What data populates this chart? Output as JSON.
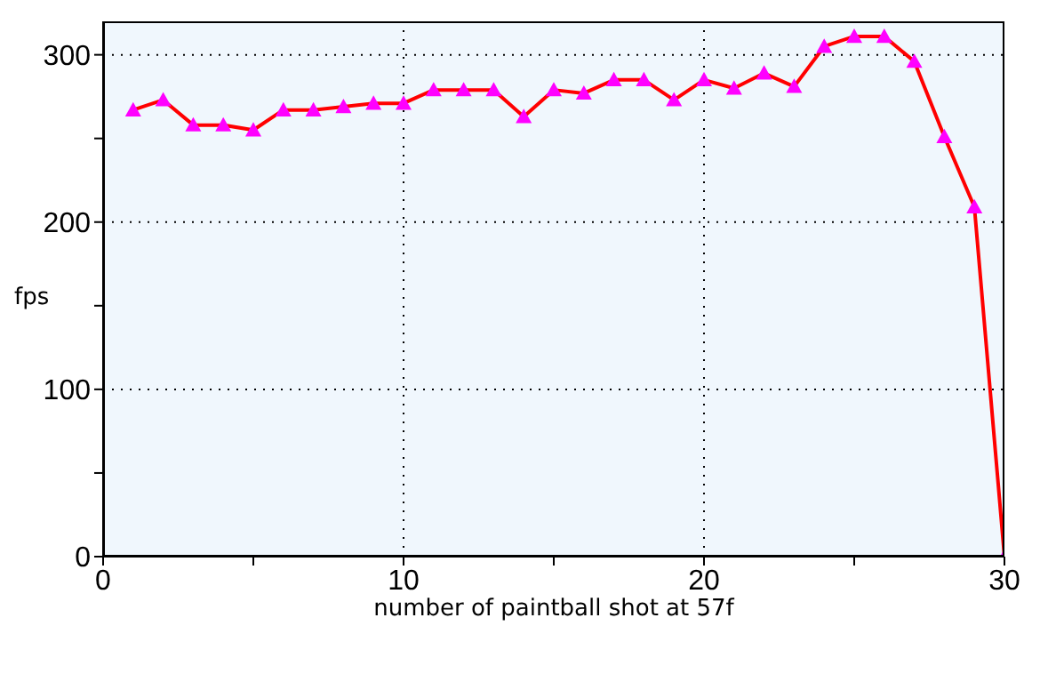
{
  "chart_data": {
    "type": "line",
    "xlabel": "number of paintball shot at 57f",
    "ylabel": "fps",
    "x": [
      1,
      2,
      3,
      4,
      5,
      6,
      7,
      8,
      9,
      10,
      11,
      12,
      13,
      14,
      15,
      16,
      17,
      18,
      19,
      20,
      21,
      22,
      23,
      24,
      25,
      26,
      27,
      28,
      29,
      30
    ],
    "series": [
      {
        "color": "#ff0000",
        "values": [
          267,
          273,
          258,
          258,
          255,
          267,
          267,
          269,
          271,
          271,
          279,
          279,
          279,
          263,
          279,
          277,
          285,
          285,
          273,
          285,
          280,
          289,
          281,
          305,
          311,
          311,
          296,
          251,
          209,
          0
        ]
      }
    ],
    "xlim": [
      0,
      30
    ],
    "xticks": [
      0,
      {
        "value": 5,
        "label": null
      },
      10,
      {
        "value": 15,
        "label": null
      },
      20,
      {
        "value": 25,
        "label": null
      },
      30
    ],
    "ylim": [
      0,
      320
    ],
    "yticks": [
      0,
      {
        "value": 50,
        "label": null
      },
      100,
      {
        "value": 150,
        "label": null
      },
      200,
      {
        "value": 250,
        "label": null
      },
      300
    ],
    "grid": true,
    "marker": "triangle",
    "line_style": "solid"
  }
}
